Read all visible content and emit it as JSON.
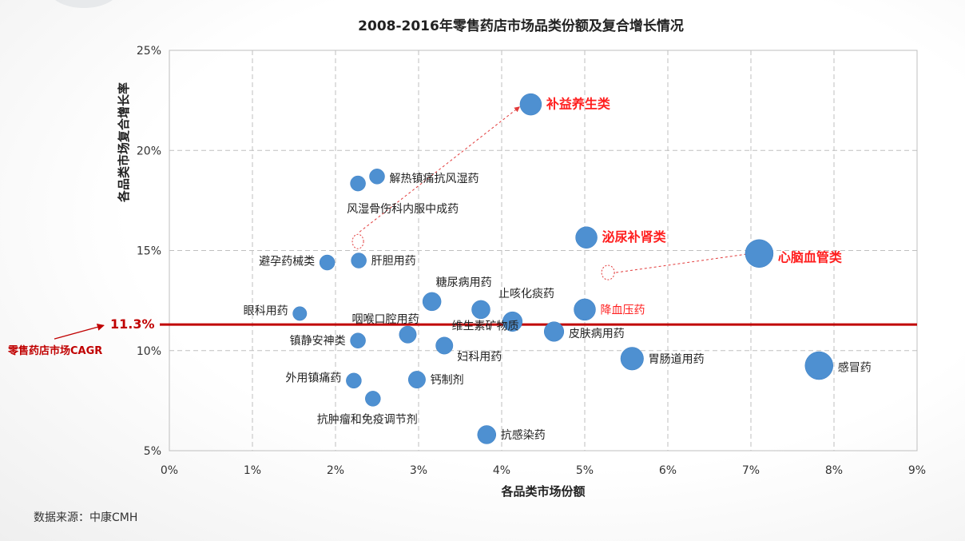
{
  "chart_data": {
    "type": "scatter",
    "title": "2008-2016年零售药店市场品类份额及复合增长情况",
    "xlabel": "各品类市场份额",
    "ylabel": "各品类市场复合增长率",
    "xlim": [
      0,
      9
    ],
    "ylim": [
      5,
      25
    ],
    "x_ticks": [
      "0%",
      "1%",
      "2%",
      "3%",
      "4%",
      "5%",
      "6%",
      "7%",
      "8%",
      "9%"
    ],
    "y_ticks": [
      "5%",
      "10%",
      "15%",
      "20%",
      "25%"
    ],
    "grid": true,
    "units": "%",
    "points": [
      {
        "label": "补益养生类",
        "x": 4.35,
        "y": 22.3,
        "size": 2,
        "highlight": true
      },
      {
        "label": "解热镇痛抗风湿药",
        "x": 2.5,
        "y": 18.7,
        "size": 1
      },
      {
        "label": "风湿骨伤科内服中成药",
        "x": 2.27,
        "y": 18.35,
        "size": 1
      },
      {
        "label": "泌尿补肾类",
        "x": 5.02,
        "y": 15.65,
        "size": 2,
        "highlight": true
      },
      {
        "label": "心脑血管类",
        "x": 7.1,
        "y": 14.85,
        "size": 3,
        "highlight": true
      },
      {
        "label": "避孕药械类",
        "x": 1.9,
        "y": 14.4,
        "size": 1
      },
      {
        "label": "肝胆用药",
        "x": 2.28,
        "y": 14.5,
        "size": 1
      },
      {
        "label": "糖尿病用药",
        "x": 3.16,
        "y": 12.45,
        "size": 1.5
      },
      {
        "label": "止咳化痰药",
        "x": 3.75,
        "y": 12.05,
        "size": 1.5
      },
      {
        "label": "降血压药",
        "x": 5.0,
        "y": 12.05,
        "size": 2,
        "highlight_text": true
      },
      {
        "label": "眼科用药",
        "x": 1.57,
        "y": 11.85,
        "size": 0.8
      },
      {
        "label": "咽喉口腔用药",
        "x": 2.87,
        "y": 10.8,
        "size": 1.3
      },
      {
        "label": "维生素矿物质",
        "x": 4.13,
        "y": 11.45,
        "size": 1.7
      },
      {
        "label": "皮肤病用药",
        "x": 4.63,
        "y": 10.95,
        "size": 1.7
      },
      {
        "label": "镇静安神类",
        "x": 2.27,
        "y": 10.5,
        "size": 1
      },
      {
        "label": "妇科用药",
        "x": 3.31,
        "y": 10.25,
        "size": 1.3
      },
      {
        "label": "胃肠道用药",
        "x": 5.57,
        "y": 9.6,
        "size": 2.2
      },
      {
        "label": "感冒药",
        "x": 7.82,
        "y": 9.25,
        "size": 3
      },
      {
        "label": "外用镇痛药",
        "x": 2.22,
        "y": 8.5,
        "size": 1
      },
      {
        "label": "钙制剂",
        "x": 2.98,
        "y": 8.55,
        "size": 1.3
      },
      {
        "label": "抗肿瘤和免疫调节剂",
        "x": 2.45,
        "y": 7.6,
        "size": 1
      },
      {
        "label": "抗感染药",
        "x": 3.82,
        "y": 5.8,
        "size": 1.5
      }
    ],
    "reference_line": {
      "y": 11.3,
      "value_label": "11.3%",
      "label": "零售药店市场CAGR",
      "color": "#c00000"
    }
  },
  "colors": {
    "bubble": "#4e90d1",
    "highlight": "#ff1e1e",
    "reference": "#c00000"
  },
  "source": "数据来源：中康CMH"
}
